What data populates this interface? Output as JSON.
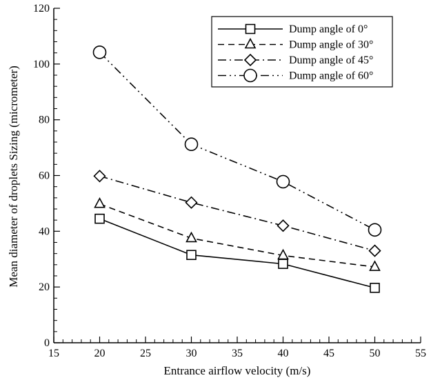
{
  "chart_data": {
    "type": "line",
    "xlabel": "Entrance airflow velocity (m/s)",
    "ylabel": "Mean diameter of droplets Sizing (micrometer)",
    "xlim": [
      15,
      55
    ],
    "ylim": [
      0,
      120
    ],
    "xticks": [
      15,
      20,
      25,
      30,
      35,
      40,
      45,
      50,
      55
    ],
    "yticks": [
      0,
      20,
      40,
      60,
      80,
      100,
      120
    ],
    "x": [
      20,
      30,
      40,
      50
    ],
    "legend_position": "top-right",
    "grid": false,
    "series": [
      {
        "name": "Dump angle of 0°",
        "values": [
          44.5,
          31.5,
          28.3,
          19.7
        ],
        "marker": "square",
        "dash": "solid"
      },
      {
        "name": "Dump angle of 30°",
        "values": [
          49.8,
          37.5,
          31.3,
          27.2
        ],
        "marker": "triangle",
        "dash": "dashed"
      },
      {
        "name": "Dump angle of 45°",
        "values": [
          59.8,
          50.3,
          42.0,
          33.0
        ],
        "marker": "diamond",
        "dash": "dashdot"
      },
      {
        "name": "Dump angle of 60°",
        "values": [
          104.2,
          71.2,
          57.8,
          40.5
        ],
        "marker": "circle",
        "dash": "dashdotdot"
      }
    ]
  }
}
